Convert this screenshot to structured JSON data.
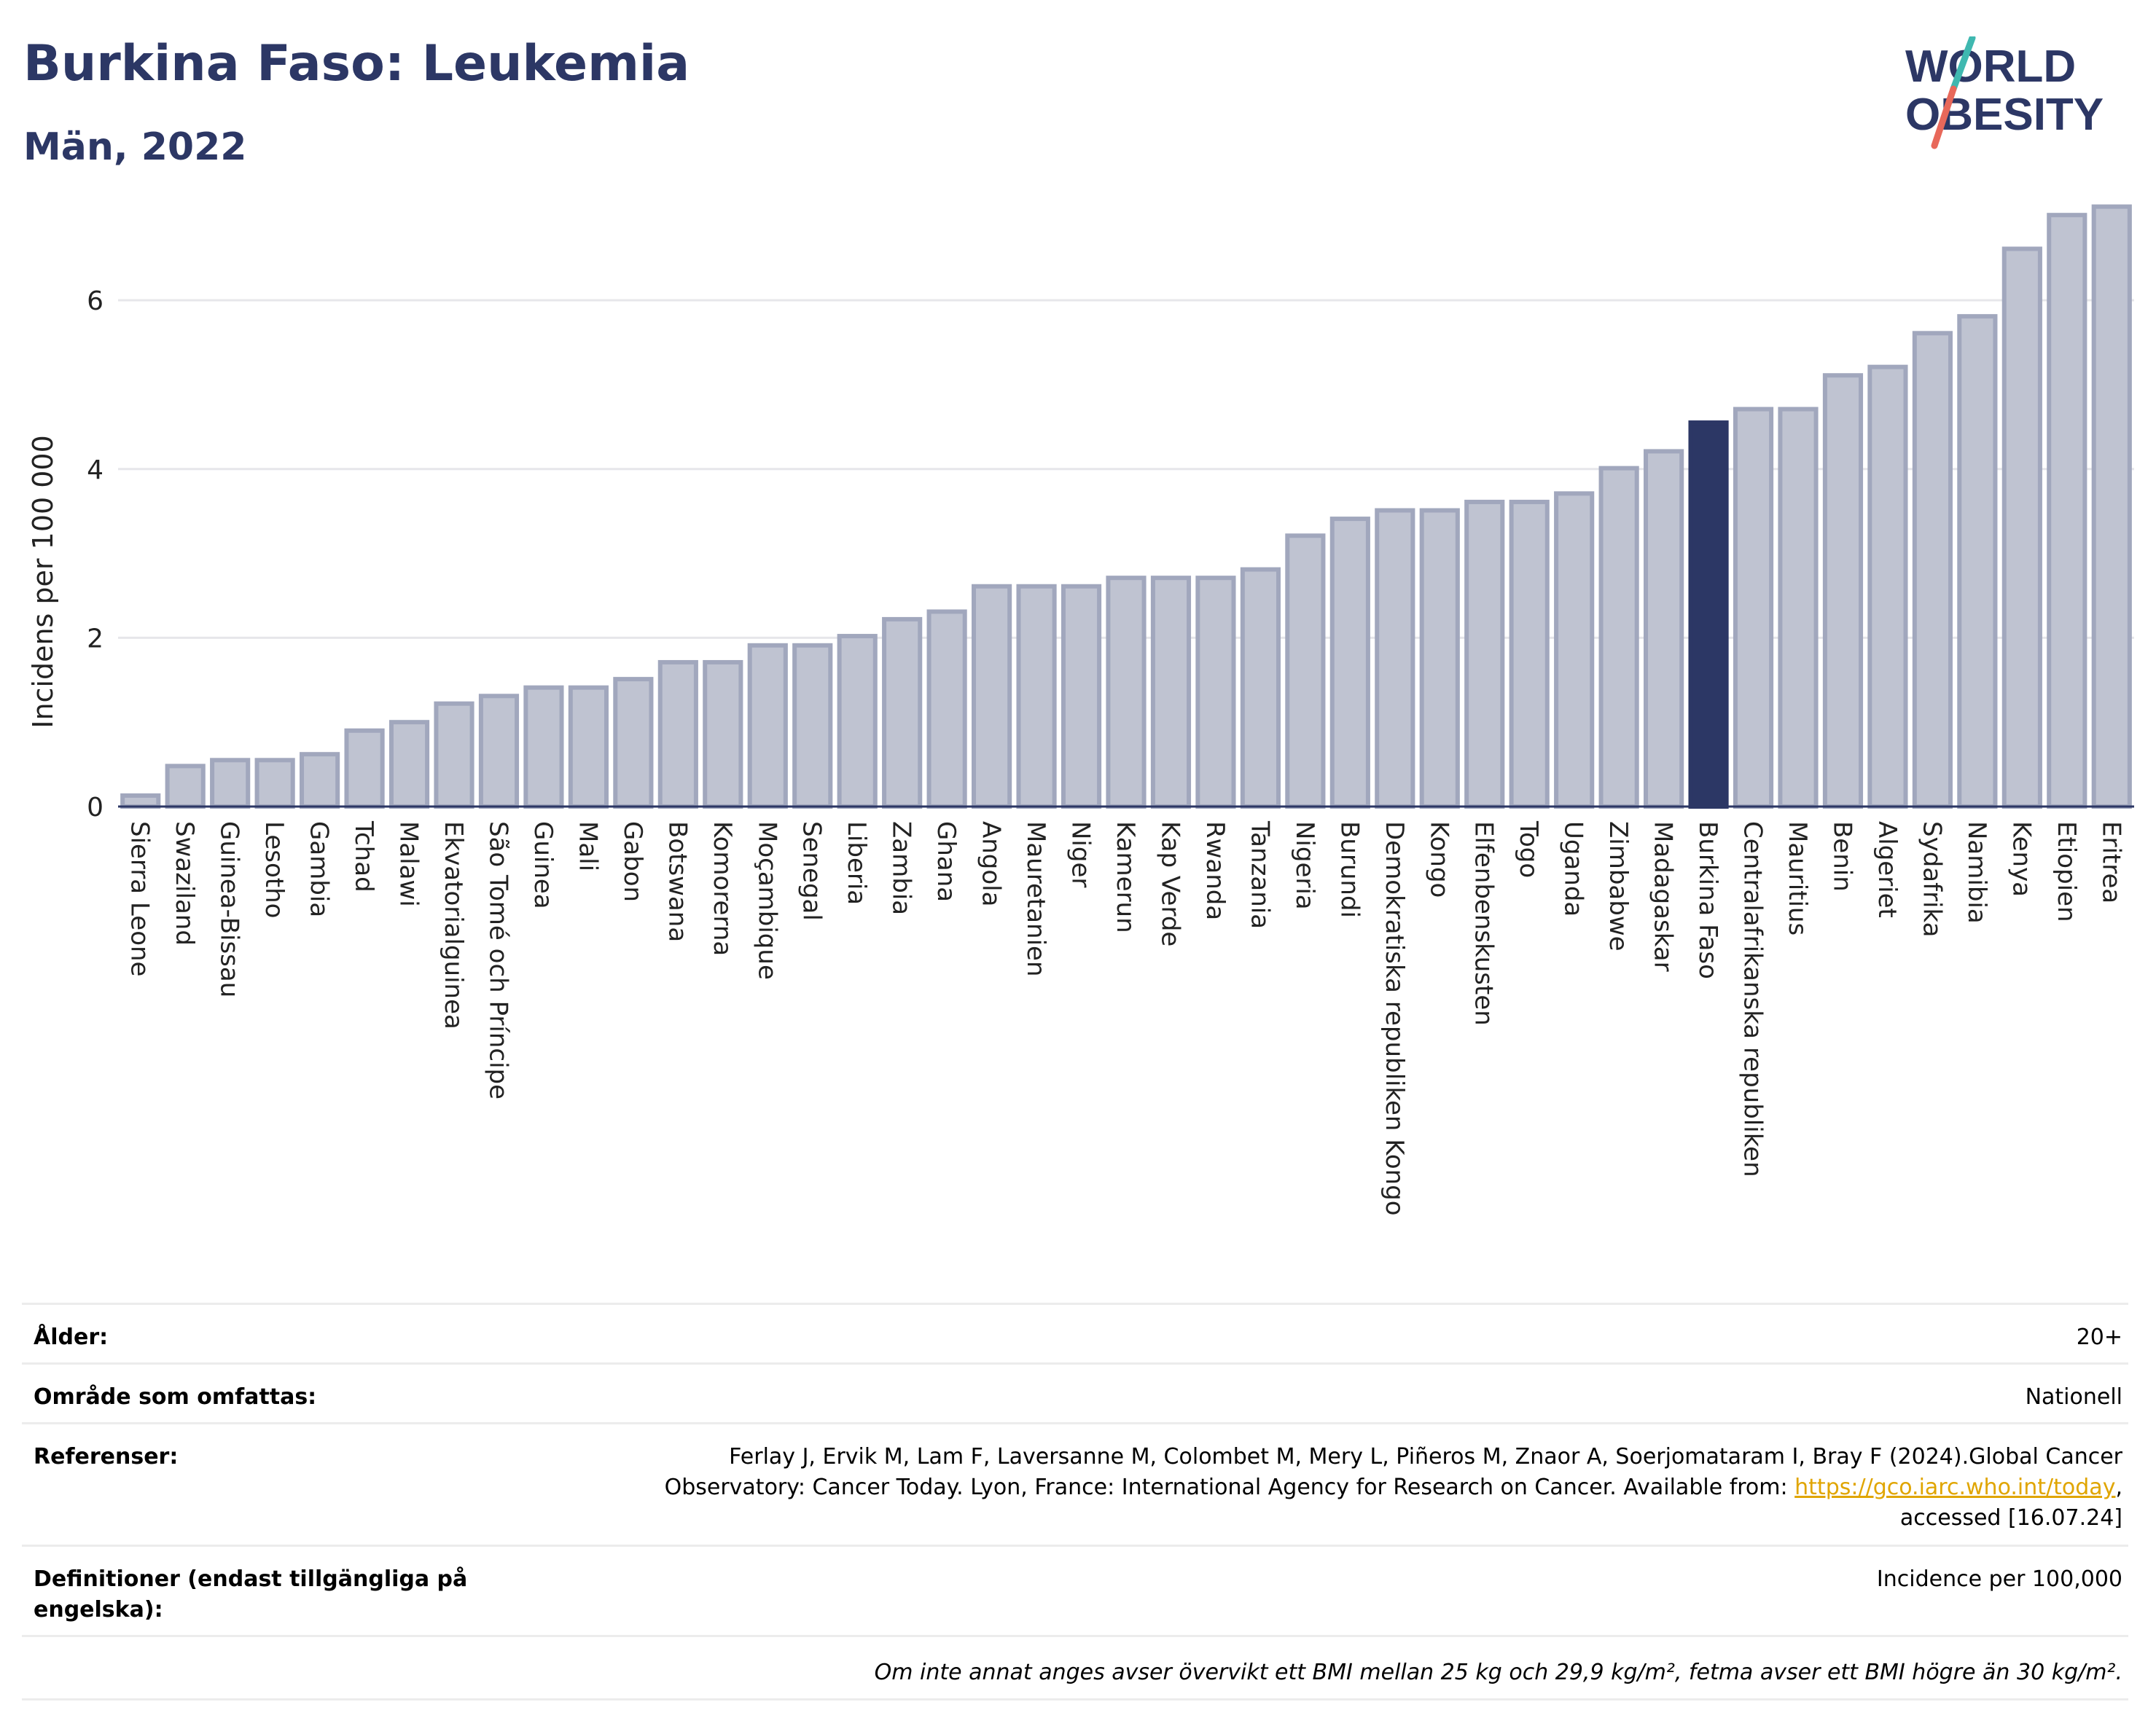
{
  "header": {
    "title": "Burkina Faso: Leukemia",
    "subtitle": "Män, 2022",
    "logo_line1": "WORLD",
    "logo_line2": "OBESITY"
  },
  "colors": {
    "bar": "#bfc3d1",
    "bar_border": "#a1a7bd",
    "highlight": "#2c3765",
    "title": "#2c3765",
    "logo_teal": "#3fb8b0",
    "logo_red": "#e8685a"
  },
  "chart_data": {
    "type": "bar",
    "ylabel": "Incidens per 100 000",
    "ylim": [
      0,
      7.4
    ],
    "yticks": [
      0,
      2,
      4,
      6
    ],
    "grid": true,
    "highlight": "Burkina Faso",
    "categories": [
      "Sierra Leone",
      "Swaziland",
      "Guinea-Bissau",
      "Lesotho",
      "Gambia",
      "Tchad",
      "Malawi",
      "Ekvatorialguinea",
      "São Tomé och Príncipe",
      "Guinea",
      "Mali",
      "Gabon",
      "Botswana",
      "Komorerna",
      "Moçambique",
      "Senegal",
      "Liberia",
      "Zambia",
      "Ghana",
      "Angola",
      "Mauretanien",
      "Niger",
      "Kamerun",
      "Kap Verde",
      "Rwanda",
      "Tanzania",
      "Nigeria",
      "Burundi",
      "Demokratiska republiken Kongo",
      "Kongo",
      "Elfenbenskusten",
      "Togo",
      "Uganda",
      "Zimbabwe",
      "Madagaskar",
      "Burkina Faso",
      "Centralafrikanska republiken",
      "Mauritius",
      "Benin",
      "Algeriet",
      "Sydafrika",
      "Namibia",
      "Kenya",
      "Etiopien",
      "Eritrea"
    ],
    "values": [
      0.13,
      0.48,
      0.55,
      0.55,
      0.62,
      0.9,
      1.0,
      1.22,
      1.31,
      1.41,
      1.41,
      1.51,
      1.71,
      1.71,
      1.91,
      1.91,
      2.02,
      2.22,
      2.31,
      2.61,
      2.61,
      2.61,
      2.71,
      2.71,
      2.71,
      2.81,
      3.21,
      3.41,
      3.51,
      3.51,
      3.61,
      3.61,
      3.71,
      4.01,
      4.21,
      4.55,
      4.71,
      4.71,
      5.11,
      5.21,
      5.61,
      5.81,
      6.61,
      7.01,
      7.11
    ]
  },
  "info": {
    "age_label": "Ålder:",
    "age_value": "20+",
    "area_label": "Område som omfattas:",
    "area_value": "Nationell",
    "ref_label": "Referenser:",
    "ref_line1": "Ferlay J, Ervik M, Lam F, Laversanne M, Colombet M, Mery L, Piñeros M, Znaor A, Soerjomataram I, Bray F (2024).Global Cancer",
    "ref_line2": "Observatory: Cancer Today. Lyon, France: International Agency for Research on Cancer. Available from: ",
    "ref_link": "https://gco.iarc.who.int/today",
    "ref_line2_end": ",",
    "ref_line3": "accessed [16.07.24]",
    "def_label": "Definitioner (endast tillgängliga på engelska):",
    "def_value": "Incidence per 100,000",
    "note": "Om inte annat anges avser övervikt ett BMI mellan 25 kg och 29,9 kg/m², fetma avser ett BMI högre än 30 kg/m²."
  }
}
